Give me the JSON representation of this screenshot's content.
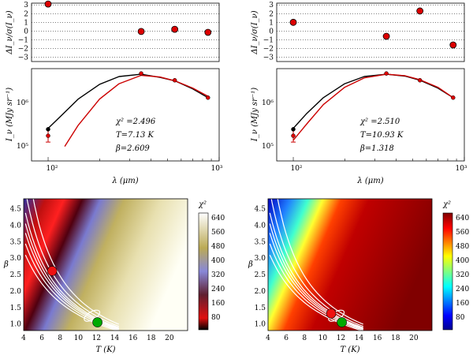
{
  "chart_data": [
    {
      "type": "scatter",
      "panel": "left-residuals",
      "ylabel": "ΔI_ν/σ(I_ν)",
      "ylim": [
        -3.5,
        3.2
      ],
      "yticks": [
        "3",
        "2",
        "1",
        "0",
        "−1",
        "−2",
        "−3"
      ],
      "grid": true,
      "x": [
        100,
        350,
        550,
        860
      ],
      "y": [
        3.1,
        -0.05,
        0.2,
        -0.15
      ]
    },
    {
      "type": "line",
      "panel": "left-sed",
      "ylabel": "I_ν (MJy sr⁻¹)",
      "xlabel": "λ (μm)",
      "xticks": [
        "10²",
        "10³"
      ],
      "yticks": [
        "10⁵",
        "10⁶"
      ],
      "xlim": [
        80,
        1000
      ],
      "annotations": [
        "χ² =2.496",
        "T=7.13 K",
        "β=2.609"
      ],
      "series": [
        {
          "name": "black fit",
          "color": "#000000",
          "x": [
            100,
            120,
            150,
            200,
            260,
            350,
            450,
            550,
            700,
            860
          ],
          "y": [
            200000.0,
            430000.0,
            1100000.0,
            2600000.0,
            4100000.0,
            4700000.0,
            3900000.0,
            3200000.0,
            2000000.0,
            1200000.0
          ]
        },
        {
          "name": "red fit",
          "color": "#cc0000",
          "x": [
            125,
            150,
            200,
            260,
            350,
            450,
            550,
            700,
            860
          ],
          "y": [
            70000.0,
            240000.0,
            1100000.0,
            2700000.0,
            4400000.0,
            4000000.0,
            3200000.0,
            2100000.0,
            1300000.0
          ]
        }
      ],
      "points": {
        "x": [
          100,
          100,
          350,
          550,
          860
        ],
        "y": [
          130000.0,
          190000.0,
          4900000.0,
          3300000.0,
          1200000.0
        ]
      }
    },
    {
      "type": "scatter",
      "panel": "right-residuals",
      "ylabel": "ΔI_ν/σ(I_ν)",
      "ylim": [
        -3.5,
        3.2
      ],
      "yticks": [
        "3",
        "2",
        "1",
        "0",
        "−1",
        "−2",
        "−3"
      ],
      "grid": true,
      "x": [
        100,
        350,
        550,
        860
      ],
      "y": [
        1.0,
        -0.6,
        2.3,
        -1.6
      ]
    },
    {
      "type": "line",
      "panel": "right-sed",
      "ylabel": "I_ν (MJy sr⁻¹)",
      "xlabel": "λ (μm)",
      "xticks": [
        "10²",
        "10³"
      ],
      "yticks": [
        "10⁵",
        "10⁶"
      ],
      "xlim": [
        80,
        1000
      ],
      "annotations": [
        "χ² =2.510",
        "T=10.93 K",
        "β=1.318"
      ],
      "series": [
        {
          "name": "black fit",
          "color": "#000000",
          "x": [
            100,
            120,
            150,
            200,
            260,
            350,
            450,
            550,
            700,
            860
          ],
          "y": [
            200000.0,
            480000.0,
            1200000.0,
            2700000.0,
            4100000.0,
            4700000.0,
            4200000.0,
            3300000.0,
            2100000.0,
            1200000.0
          ]
        },
        {
          "name": "red fit",
          "color": "#cc0000",
          "x": [
            100,
            120,
            150,
            200,
            260,
            350,
            450,
            550,
            700,
            860
          ],
          "y": [
            100000.0,
            260000.0,
            800000.0,
            2200000.0,
            3800000.0,
            4700000.0,
            4300000.0,
            3400000.0,
            2200000.0,
            1200000.0
          ]
        }
      ],
      "points": {
        "x": [
          100,
          100,
          350,
          550,
          860
        ],
        "y": [
          130000.0,
          190000.0,
          4900000.0,
          3300000.0,
          1200000.0
        ]
      }
    },
    {
      "type": "heatmap",
      "panel": "left-map",
      "xlabel": "T (K)",
      "ylabel": "β",
      "xticks": [
        "4",
        "6",
        "8",
        "10",
        "12",
        "14",
        "16",
        "18",
        "20"
      ],
      "yticks": [
        "1.0",
        "1.5",
        "2.0",
        "2.5",
        "3.0",
        "3.5",
        "4.0",
        "4.5"
      ],
      "xlim": [
        4,
        22
      ],
      "ylim": [
        0.8,
        4.8
      ],
      "colorbar_label": "χ²",
      "colorbar_ticks": [
        "640",
        "560",
        "480",
        "400",
        "320",
        "240",
        "160",
        "80"
      ],
      "colormap": "red-black-blue-yellow-white",
      "markers": [
        {
          "name": "best fit (red)",
          "T": 7.13,
          "beta": 2.609,
          "color": "#ee1111"
        },
        {
          "name": "best fit (green)",
          "T": 12.1,
          "beta": 1.05,
          "color": "#00aa00"
        }
      ]
    },
    {
      "type": "heatmap",
      "panel": "right-map",
      "xlabel": "T (K)",
      "ylabel": "β",
      "xticks": [
        "4",
        "6",
        "8",
        "10",
        "12",
        "14",
        "16",
        "18",
        "20"
      ],
      "yticks": [
        "1.0",
        "1.5",
        "2.0",
        "2.5",
        "3.0",
        "3.5",
        "4.0",
        "4.5"
      ],
      "xlim": [
        4,
        22
      ],
      "ylim": [
        0.8,
        4.8
      ],
      "colorbar_label": "χ²",
      "colorbar_ticks": [
        "640",
        "560",
        "480",
        "400",
        "320",
        "240",
        "160",
        "80"
      ],
      "colormap": "jet",
      "markers": [
        {
          "name": "best fit (red)",
          "T": 10.93,
          "beta": 1.318,
          "color": "#ee1111"
        },
        {
          "name": "best fit (green)",
          "T": 12.1,
          "beta": 1.05,
          "color": "#00aa00"
        }
      ]
    }
  ]
}
